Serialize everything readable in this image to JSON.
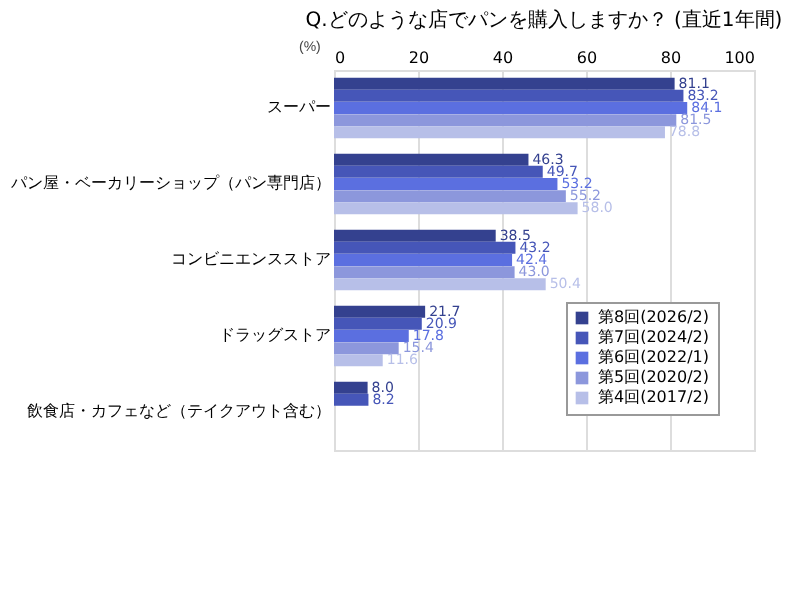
{
  "chart_data": {
    "type": "bar",
    "orientation": "horizontal",
    "title": "Q.どのような店でパンを購入しますか？ (直近1年間)",
    "xlabel": "(%)",
    "categories": [
      "スーパー",
      "パン屋・ベーカリーショップ（パン専門店）",
      "コンビニエンスストア",
      "ドラッグストア",
      "飲食店・カフェなど（テイクアウト含む）"
    ],
    "series": [
      {
        "name": "第8回(2026/2)",
        "color": "#34418f",
        "values": [
          81.1,
          46.3,
          38.5,
          21.7,
          8.0
        ],
        "value_labels": [
          "81.1",
          "46.3",
          "38.5",
          "21.7",
          "8.0"
        ]
      },
      {
        "name": "第7回(2024/2)",
        "color": "#4656b8",
        "values": [
          83.2,
          49.7,
          43.2,
          20.9,
          8.2
        ],
        "value_labels": [
          "83.2",
          "49.7",
          "43.2",
          "20.9",
          "8.2"
        ]
      },
      {
        "name": "第6回(2022/1)",
        "color": "#5b6fe0",
        "values": [
          84.1,
          53.2,
          42.4,
          17.8,
          null
        ],
        "value_labels": [
          "84.1",
          "53.2",
          "42.4",
          "17.8",
          null
        ]
      },
      {
        "name": "第5回(2020/2)",
        "color": "#8c97dc",
        "values": [
          81.5,
          55.2,
          43.0,
          15.4,
          null
        ],
        "value_labels": [
          "81.5",
          "55.2",
          "43.0",
          "15.4",
          null
        ]
      },
      {
        "name": "第4回(2017/2)",
        "color": "#b7bfe8",
        "values": [
          78.8,
          58.0,
          50.4,
          11.6,
          null
        ],
        "value_labels": [
          "78.8",
          "58.0",
          "50.4",
          "11.6",
          null
        ]
      }
    ],
    "xlim": [
      0,
      100
    ],
    "xticks": [
      0,
      20,
      40,
      60,
      80,
      100
    ],
    "grid": "x",
    "legend": "bottom right"
  }
}
